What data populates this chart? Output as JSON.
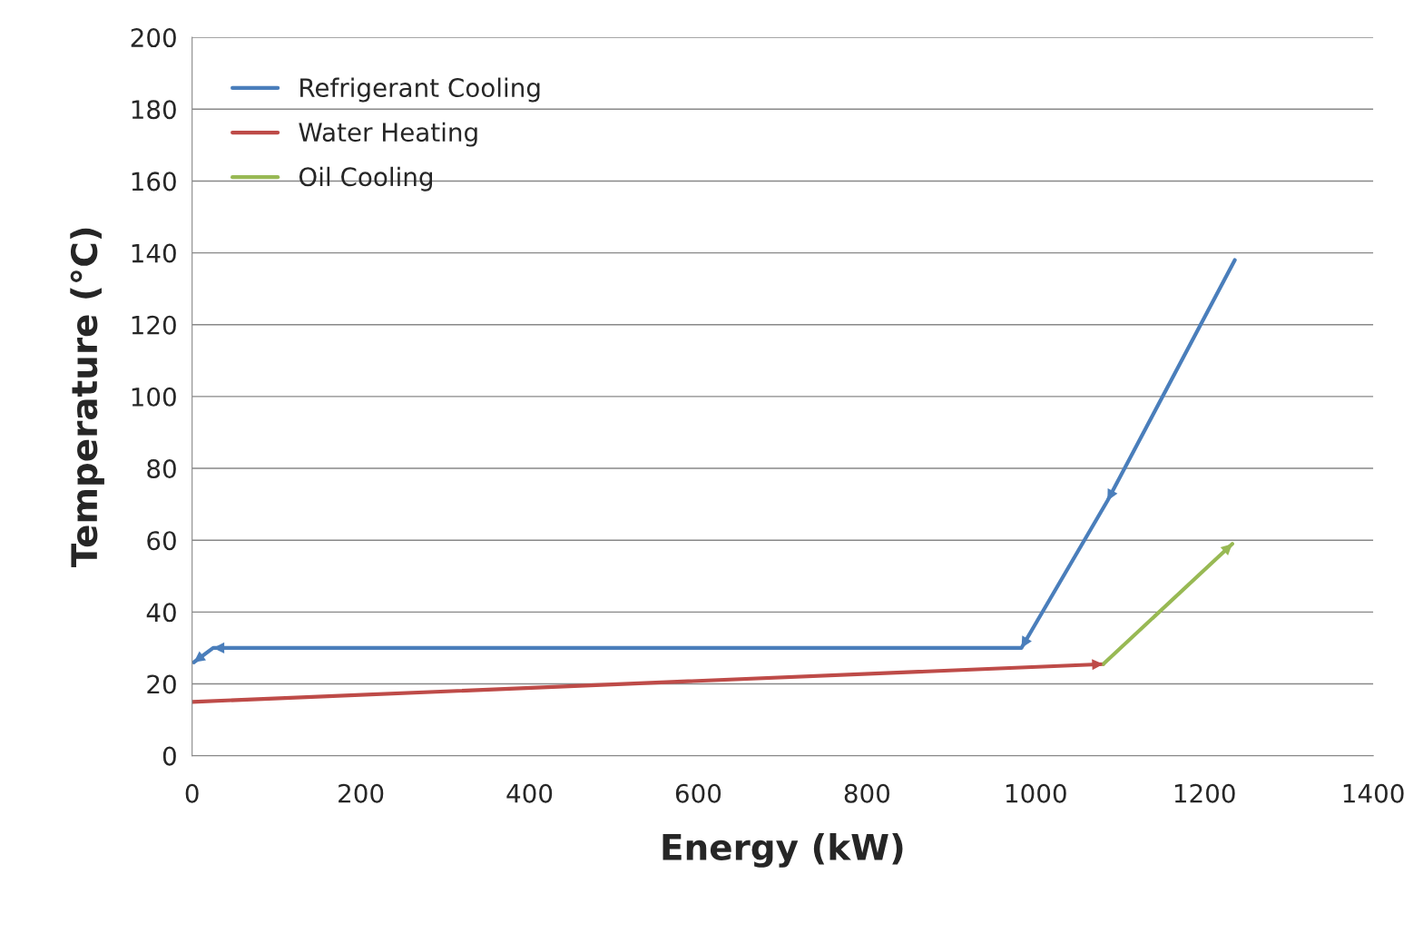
{
  "chart_data": {
    "type": "line",
    "xlabel": "Energy (kW)",
    "ylabel": "Temperature (°C)",
    "series": [
      {
        "name": "Refrigerant Cooling",
        "color": "#4a7ebb",
        "x": [
          1236,
          1085,
          983,
          25,
          2
        ],
        "values": [
          138,
          71,
          30,
          30,
          26
        ]
      },
      {
        "name": "Water Heating",
        "color": "#be4b48",
        "x": [
          0,
          1080
        ],
        "values": [
          15,
          25.5
        ]
      },
      {
        "name": "Oil Cooling",
        "color": "#98b954",
        "x": [
          1080,
          1233
        ],
        "values": [
          25.5,
          59
        ]
      }
    ],
    "xlim": [
      0,
      1400
    ],
    "xticks": [
      0,
      200,
      400,
      600,
      800,
      1000,
      1200,
      1400
    ],
    "ylim": [
      0,
      200
    ],
    "yticks": [
      0,
      20,
      40,
      60,
      80,
      100,
      120,
      140,
      160,
      180,
      200
    ],
    "grid": "y",
    "legend": "top left",
    "marker": "none",
    "line_style": "solid"
  }
}
